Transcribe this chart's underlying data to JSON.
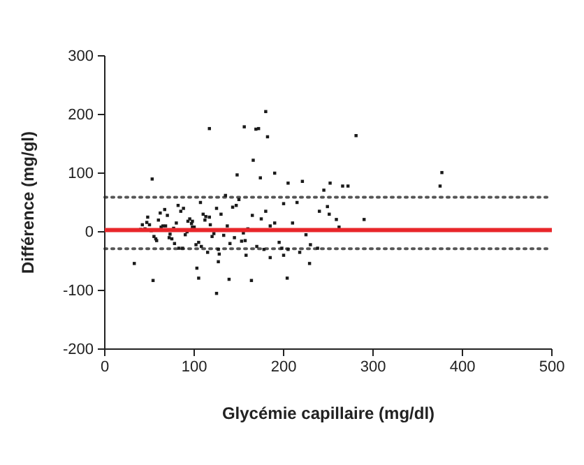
{
  "chart_data": {
    "type": "scatter",
    "xlabel": "Glycémie capillaire (mg/dl)",
    "ylabel": "Différence (mg/gl)",
    "xlim": [
      0,
      500
    ],
    "xticks": [
      0,
      100,
      200,
      300,
      400,
      500
    ],
    "ylim": [
      -200,
      300
    ],
    "yticks": [
      -200,
      -100,
      0,
      100,
      200,
      300
    ],
    "marker": "square",
    "grid": false,
    "series": [
      {
        "color": "#1a1a1a",
        "x": [
          117,
          156,
          169,
          172,
          180,
          182,
          281,
          377,
          375,
          166,
          148,
          190,
          174,
          53,
          221,
          205,
          252,
          266,
          272,
          245,
          290,
          229,
          33,
          54,
          105,
          103,
          125,
          139,
          164,
          204,
          127,
          185,
          200,
          262,
          259,
          249,
          251,
          45,
          50,
          55,
          60,
          65,
          70,
          75,
          80,
          85,
          90,
          95,
          100,
          105,
          110,
          48,
          58,
          68,
          78,
          88,
          98,
          108,
          118,
          52,
          62,
          72,
          82,
          92,
          102,
          112,
          122,
          57,
          67,
          77,
          87,
          97,
          107,
          117,
          127,
          137,
          147,
          157,
          120,
          130,
          140,
          150,
          160,
          170,
          180,
          190,
          200,
          115,
          135,
          155,
          175,
          195,
          125,
          145,
          165,
          185,
          205,
          215,
          225,
          210,
          230,
          240,
          63,
          83,
          93,
          113,
          133,
          143,
          153,
          40,
          42,
          47,
          73,
          98,
          128,
          158,
          178,
          198,
          218,
          238
        ],
        "values": [
          176,
          179,
          175,
          176,
          205,
          162,
          164,
          101,
          78,
          122,
          97,
          100,
          92,
          90,
          86,
          83,
          83,
          78,
          78,
          71,
          21,
          -54,
          -54,
          -83,
          -79,
          -62,
          -105,
          -81,
          -83,
          -79,
          -51,
          -44,
          -40,
          8,
          21,
          43,
          30,
          5,
          12,
          -8,
          20,
          10,
          28,
          -12,
          15,
          35,
          -5,
          22,
          8,
          -18,
          30,
          25,
          -15,
          10,
          -20,
          40,
          18,
          -25,
          12,
          2,
          32,
          -10,
          45,
          0,
          -22,
          20,
          -3,
          -12,
          38,
          6,
          -28,
          14,
          50,
          25,
          -30,
          10,
          45,
          -15,
          -8,
          30,
          -20,
          55,
          5,
          -25,
          35,
          15,
          48,
          -35,
          62,
          -2,
          22,
          -18,
          40,
          -10,
          28,
          10,
          -30,
          50,
          -5,
          15,
          -22,
          35,
          8,
          -28,
          18,
          26,
          -6,
          42,
          -16,
          4,
          12,
          16,
          -4,
          8,
          -38,
          -40,
          -30,
          -28,
          -35,
          -28
        ]
      }
    ],
    "ref_lines": [
      {
        "axis": "y",
        "value": 3,
        "color": "#e8262a",
        "line_style": "solid"
      },
      {
        "axis": "y",
        "value": 59,
        "color": "#555555",
        "line_style": "dotted"
      },
      {
        "axis": "y",
        "value": -29,
        "color": "#555555",
        "line_style": "dotted"
      }
    ]
  }
}
